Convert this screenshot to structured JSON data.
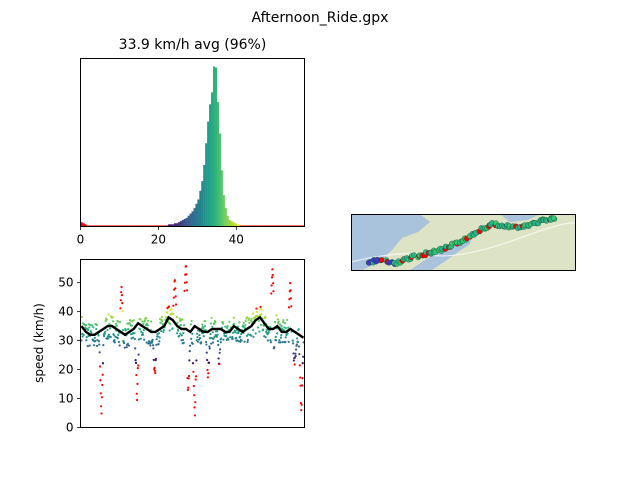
{
  "figure": {
    "title": "Afternoon_Ride.gpx"
  },
  "chart_data": [
    {
      "type": "bar",
      "subtype": "histogram",
      "title": "33.9 km/h avg (96%)",
      "xlabel": "",
      "ylabel": "",
      "xlim": [
        0,
        57.5
      ],
      "xticks": [
        0,
        20,
        40
      ],
      "yticks_shown": false,
      "bin_width": 0.5,
      "colormap": "viridis",
      "outlier_color": "#ff0000",
      "bins_x": [
        0.0,
        0.5,
        1.0,
        1.5,
        2.0,
        2.5,
        3.0,
        3.5,
        4.0,
        4.5,
        5.0,
        5.5,
        6.0,
        6.5,
        7.0,
        7.5,
        8.0,
        8.5,
        9.0,
        9.5,
        10.0,
        10.5,
        11.0,
        11.5,
        12.0,
        12.5,
        13.0,
        13.5,
        14.0,
        14.5,
        15.0,
        15.5,
        16.0,
        16.5,
        17.0,
        17.5,
        18.0,
        18.5,
        19.0,
        19.5,
        20.0,
        20.5,
        21.0,
        21.5,
        22.0,
        22.5,
        23.0,
        23.5,
        24.0,
        24.5,
        25.0,
        25.5,
        26.0,
        26.5,
        27.0,
        27.5,
        28.0,
        28.5,
        29.0,
        29.5,
        30.0,
        30.5,
        31.0,
        31.5,
        32.0,
        32.5,
        33.0,
        33.5,
        34.0,
        34.5,
        35.0,
        35.5,
        36.0,
        36.5,
        37.0,
        37.5,
        38.0,
        38.5,
        39.0,
        39.5,
        40.0,
        40.5,
        41.0,
        41.5,
        42.0,
        42.5,
        43.0,
        43.5,
        44.0,
        44.5,
        45.0,
        45.5,
        46.0,
        46.5,
        47.0,
        47.5,
        48.0,
        48.5,
        49.0,
        49.5,
        50.0,
        50.5,
        51.0,
        51.5,
        52.0,
        52.5,
        53.0,
        53.5,
        54.0,
        54.5,
        55.0,
        55.5,
        56.0,
        56.5,
        57.0
      ],
      "counts": [
        4,
        3,
        2,
        1,
        1,
        1,
        1,
        1,
        1,
        1,
        1,
        1,
        1,
        1,
        1,
        1,
        1,
        1,
        1,
        1,
        1,
        1,
        1,
        1,
        1,
        1,
        1,
        1,
        1,
        1,
        1,
        1,
        1,
        1,
        1,
        1,
        1,
        1,
        1,
        1,
        1,
        1,
        1,
        1,
        1,
        2,
        2,
        2,
        3,
        3,
        4,
        5,
        6,
        7,
        8,
        10,
        12,
        14,
        17,
        21,
        25,
        33,
        42,
        57,
        77,
        97,
        113,
        124,
        148,
        147,
        115,
        86,
        52,
        29,
        17,
        10,
        6,
        5,
        4,
        3,
        2,
        2,
        1,
        1,
        1,
        1,
        1,
        1,
        1,
        1,
        1,
        1,
        1,
        1,
        1,
        1,
        1,
        1,
        1,
        1,
        1,
        1,
        1,
        1,
        1,
        1,
        1,
        1,
        1,
        1,
        1,
        1,
        1,
        1,
        1
      ],
      "inlier_range": [
        22,
        41
      ]
    },
    {
      "type": "scatter",
      "subtype": "time-series",
      "title": "",
      "xlabel": "",
      "ylabel": "speed (km/h)",
      "ylim": [
        0,
        58
      ],
      "yticks": [
        0,
        10,
        20,
        30,
        40,
        50
      ],
      "xticks_shown": false,
      "colormap": "viridis",
      "outlier_color": "#ff0000",
      "smoothed_line_color": "#000000",
      "n_points": 600,
      "mean_speed": 33.9,
      "smoothed_speed": [
        35,
        33,
        32,
        32,
        33,
        34,
        35,
        35,
        34,
        33,
        32,
        33,
        34,
        36,
        35,
        34,
        33,
        33,
        34,
        35,
        38,
        37,
        35,
        34,
        34,
        33,
        35,
        34,
        33,
        33,
        34,
        34,
        34,
        33,
        33,
        35,
        34,
        33,
        34,
        35,
        37,
        38,
        36,
        34,
        34,
        35,
        33,
        33,
        34,
        33,
        32,
        31
      ],
      "dip_positions": [
        0.09,
        0.25,
        0.33,
        0.48,
        0.51,
        0.57,
        0.62,
        0.86,
        0.96,
        0.99
      ],
      "dip_minimums": [
        2,
        8,
        15,
        9,
        1,
        16,
        20,
        14,
        19,
        3
      ],
      "spike_positions": [
        0.18,
        0.42,
        0.47,
        0.86,
        0.94
      ],
      "spike_maximums": [
        49,
        52,
        57,
        55,
        50
      ]
    },
    {
      "type": "map",
      "title": "",
      "track_colors": [
        "#3b3bc8",
        "#29b58a",
        "#34c56f",
        "#ff0000"
      ],
      "water_color": "#a9c3dd",
      "land_color": "#dde3c5"
    }
  ]
}
